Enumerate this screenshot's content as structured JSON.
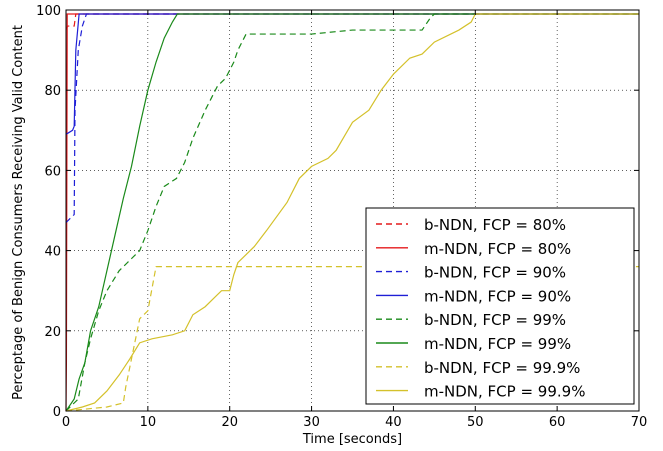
{
  "chart_data": {
    "type": "line",
    "title": "",
    "xlabel": "Time [seconds]",
    "ylabel": "Perceptage of Benign Consumers Receiving Valid Content",
    "xlim": [
      0,
      70
    ],
    "ylim": [
      0,
      100
    ],
    "xticks": [
      "0",
      "10",
      "20",
      "30",
      "40",
      "50",
      "60",
      "70"
    ],
    "yticks": [
      "0",
      "20",
      "40",
      "60",
      "80",
      "100"
    ],
    "grid": true,
    "legend_position": "lower-right",
    "series": [
      {
        "name": "b-NDN, FCP = 80%",
        "color": "#e41a1c",
        "dash": "dashed",
        "x": [
          0,
          0.2,
          1.0,
          1.2,
          70
        ],
        "y": [
          95,
          96,
          96,
          99,
          99
        ]
      },
      {
        "name": "m-NDN, FCP = 80%",
        "color": "#e41a1c",
        "dash": "solid",
        "x": [
          0,
          0.05,
          0.15,
          0.3,
          70
        ],
        "y": [
          0,
          12,
          99,
          99,
          99
        ]
      },
      {
        "name": "b-NDN, FCP = 90%",
        "color": "#1f1fd6",
        "dash": "dashed",
        "x": [
          0,
          1.0,
          1.1,
          1.5,
          2.0,
          2.5,
          70
        ],
        "y": [
          47,
          49,
          75,
          90,
          96,
          99,
          99
        ]
      },
      {
        "name": "m-NDN, FCP = 90%",
        "color": "#1f1fd6",
        "dash": "solid",
        "x": [
          0,
          0.8,
          1.0,
          1.2,
          1.6,
          70
        ],
        "y": [
          69,
          70,
          71,
          90,
          99,
          99
        ]
      },
      {
        "name": "b-NDN, FCP = 99%",
        "color": "#1a8a1a",
        "dash": "dashed",
        "x": [
          0,
          1.5,
          2.3,
          3.0,
          4.0,
          5.0,
          6.5,
          8.0,
          9.0,
          10.0,
          11.0,
          12.0,
          13.5,
          14.5,
          15.5,
          17.0,
          18.5,
          19.5,
          20.5,
          21.0,
          22.0,
          25.0,
          30.0,
          35.0,
          40.0,
          43.5,
          44.5,
          45.0,
          70
        ],
        "y": [
          0,
          3,
          12,
          18,
          25,
          30,
          35,
          38,
          40,
          45,
          51,
          56,
          58,
          62,
          68,
          75,
          81,
          83,
          87,
          90,
          94,
          94,
          94,
          95,
          95,
          95,
          98,
          99,
          99
        ]
      },
      {
        "name": "m-NDN, FCP = 99%",
        "color": "#1a8a1a",
        "dash": "solid",
        "x": [
          0,
          1.0,
          1.6,
          2.3,
          3.0,
          4.0,
          5.0,
          6.0,
          7.0,
          8.0,
          9.0,
          10.0,
          11.0,
          12.0,
          13.0,
          13.6,
          70
        ],
        "y": [
          0,
          3,
          8,
          12,
          20,
          26,
          35,
          44,
          53,
          61,
          71,
          80,
          87,
          93,
          97,
          99,
          99
        ]
      },
      {
        "name": "b-NDN, FCP = 99.9%",
        "color": "#d4c12b",
        "dash": "dashed",
        "x": [
          0,
          5.0,
          7.0,
          7.3,
          8.0,
          9.0,
          10.0,
          11.0,
          20,
          40,
          70
        ],
        "y": [
          0,
          1,
          2,
          6,
          13,
          23,
          25,
          36,
          36,
          36,
          36
        ]
      },
      {
        "name": "m-NDN, FCP = 99.9%",
        "color": "#d4c12b",
        "dash": "solid",
        "x": [
          0,
          2.0,
          3.5,
          5.0,
          6.5,
          7.8,
          9.0,
          10.5,
          13.0,
          14.5,
          15.5,
          17.0,
          18.0,
          19.0,
          20.0,
          20.5,
          21.0,
          23.0,
          24.5,
          27.0,
          28.5,
          30.0,
          32.0,
          33.0,
          35.0,
          37.0,
          38.5,
          40.0,
          42.0,
          43.5,
          45.0,
          48.0,
          49.5,
          50.0,
          70
        ],
        "y": [
          0,
          1,
          2,
          5,
          9,
          13,
          17,
          18,
          19,
          20,
          24,
          26,
          28,
          30,
          30,
          34,
          37,
          41,
          45,
          52,
          58,
          61,
          63,
          65,
          72,
          75,
          80,
          84,
          88,
          89,
          92,
          95,
          97,
          99,
          99
        ]
      }
    ]
  }
}
